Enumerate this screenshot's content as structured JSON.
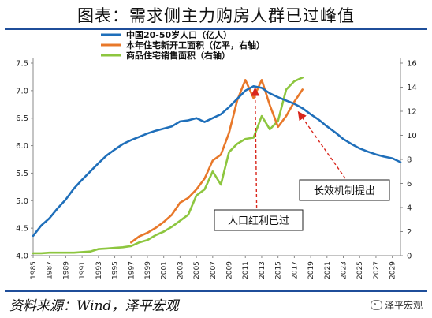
{
  "title": "图表：需求侧主力购房人群已过峰值",
  "source": "资料来源：Wind，泽平宏观",
  "brand": "泽平宏观",
  "brand_icon": "wechat-icon",
  "colors": {
    "population": "#1f6fba",
    "construction": "#e8782a",
    "sales": "#8dc63f",
    "annotation": "#d9261c",
    "rule": "#1f4e9a"
  },
  "chart_data": {
    "type": "line",
    "legend_position": "top-center",
    "grid": false,
    "ylim_left": [
      4.0,
      7.5
    ],
    "yticks_left": [
      "4.0",
      "4.5",
      "5.0",
      "5.5",
      "6.0",
      "6.5",
      "7.0",
      "7.5"
    ],
    "ylim_right": [
      0,
      16
    ],
    "yticks_right": [
      "0",
      "2",
      "4",
      "6",
      "8",
      "10",
      "12",
      "14",
      "16"
    ],
    "xlim": [
      1985,
      2030
    ],
    "xticks": [
      "1985",
      "1987",
      "1989",
      "1991",
      "1993",
      "1995",
      "1997",
      "1999",
      "2001",
      "2003",
      "2005",
      "2007",
      "2009",
      "2011",
      "2013",
      "2015",
      "2017",
      "2019",
      "2021",
      "2023",
      "2025",
      "2027",
      "2029"
    ],
    "series": [
      {
        "name": "中国20-50岁人口（亿人）",
        "axis": "left",
        "x": [
          1985,
          1986,
          1987,
          1988,
          1989,
          1990,
          1991,
          1992,
          1993,
          1994,
          1995,
          1996,
          1997,
          1998,
          1999,
          2000,
          2001,
          2002,
          2003,
          2004,
          2005,
          2006,
          2007,
          2008,
          2009,
          2010,
          2011,
          2012,
          2013,
          2014,
          2015,
          2016,
          2017,
          2018,
          2019,
          2020,
          2021,
          2022,
          2023,
          2024,
          2025,
          2026,
          2027,
          2028,
          2029,
          2030
        ],
        "values": [
          4.36,
          4.55,
          4.68,
          4.86,
          5.02,
          5.22,
          5.38,
          5.53,
          5.68,
          5.82,
          5.93,
          6.03,
          6.1,
          6.16,
          6.22,
          6.27,
          6.31,
          6.35,
          6.44,
          6.46,
          6.5,
          6.43,
          6.5,
          6.57,
          6.7,
          6.85,
          7.0,
          7.08,
          7.05,
          6.95,
          6.88,
          6.82,
          6.76,
          6.68,
          6.57,
          6.47,
          6.35,
          6.24,
          6.12,
          6.03,
          5.95,
          5.89,
          5.84,
          5.8,
          5.77,
          5.7
        ]
      },
      {
        "name": "本年住宅新开工面积（亿平，右轴）",
        "axis": "right",
        "x": [
          1997,
          1998,
          1999,
          2000,
          2001,
          2002,
          2003,
          2004,
          2005,
          2006,
          2007,
          2008,
          2009,
          2010,
          2011,
          2012,
          2013,
          2014,
          2015,
          2016,
          2017,
          2018
        ],
        "values": [
          1.1,
          1.6,
          1.9,
          2.3,
          2.8,
          3.4,
          4.4,
          4.8,
          5.5,
          6.4,
          7.9,
          8.4,
          10.2,
          12.9,
          14.6,
          13.1,
          14.6,
          12.5,
          10.7,
          11.6,
          12.8,
          13.8
        ]
      },
      {
        "name": "商品住宅销售面积（右轴）",
        "axis": "right",
        "x": [
          1985,
          1986,
          1987,
          1988,
          1989,
          1990,
          1991,
          1992,
          1993,
          1994,
          1995,
          1996,
          1997,
          1998,
          1999,
          2000,
          2001,
          2002,
          2003,
          2004,
          2005,
          2006,
          2007,
          2008,
          2009,
          2010,
          2011,
          2012,
          2013,
          2014,
          2015,
          2016,
          2017,
          2018
        ],
        "values": [
          0.2,
          0.2,
          0.25,
          0.25,
          0.25,
          0.25,
          0.3,
          0.35,
          0.55,
          0.6,
          0.65,
          0.7,
          0.8,
          1.1,
          1.3,
          1.7,
          2.0,
          2.4,
          2.9,
          3.4,
          5.0,
          5.5,
          7.0,
          5.9,
          8.6,
          9.3,
          9.7,
          9.8,
          11.6,
          10.5,
          11.2,
          13.8,
          14.5,
          14.8
        ]
      }
    ],
    "annotations": [
      {
        "text": "人口红利已过",
        "arrow_to_year": 2012
      },
      {
        "text": "长效机制提出",
        "arrow_to_year": 2017
      }
    ]
  }
}
